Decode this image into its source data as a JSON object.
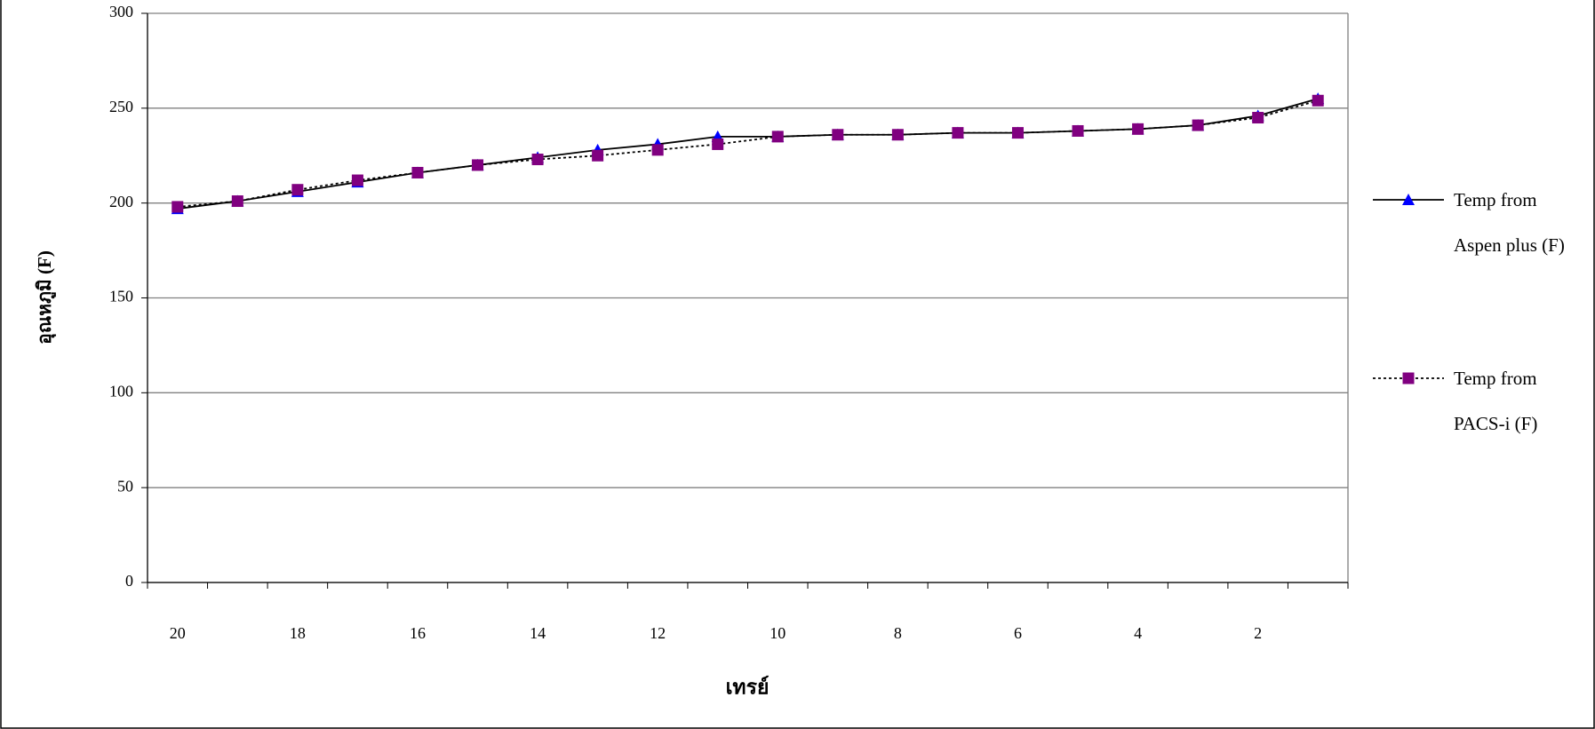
{
  "chart_data": {
    "type": "line",
    "x_label": "เทรย์",
    "y_label": "อุณหภูมิ (F)",
    "categories": [
      "20",
      null,
      "18",
      null,
      "16",
      null,
      "14",
      null,
      "12",
      null,
      "10",
      null,
      "8",
      null,
      "6",
      null,
      "4",
      null,
      "2",
      null
    ],
    "series": [
      {
        "name": "Temp from Aspen plus (F)",
        "color": "#0000ff",
        "marker": "triangle",
        "line_style": "solid",
        "values": [
          197,
          201,
          206,
          211,
          216,
          220,
          224,
          228,
          231,
          235,
          235,
          236,
          236,
          237,
          237,
          238,
          239,
          241,
          246,
          255
        ]
      },
      {
        "name": "Temp from PACS-i (F)",
        "color": "#800080",
        "marker": "square",
        "line_style": "dotted",
        "values": [
          198,
          201,
          207,
          212,
          216,
          220,
          223,
          225,
          228,
          231,
          235,
          236,
          236,
          237,
          237,
          238,
          239,
          241,
          245,
          254
        ]
      }
    ],
    "ylim": [
      0,
      300
    ],
    "yticks": [
      0,
      50,
      100,
      150,
      200,
      250,
      300
    ],
    "grid": true,
    "legend": "right"
  }
}
